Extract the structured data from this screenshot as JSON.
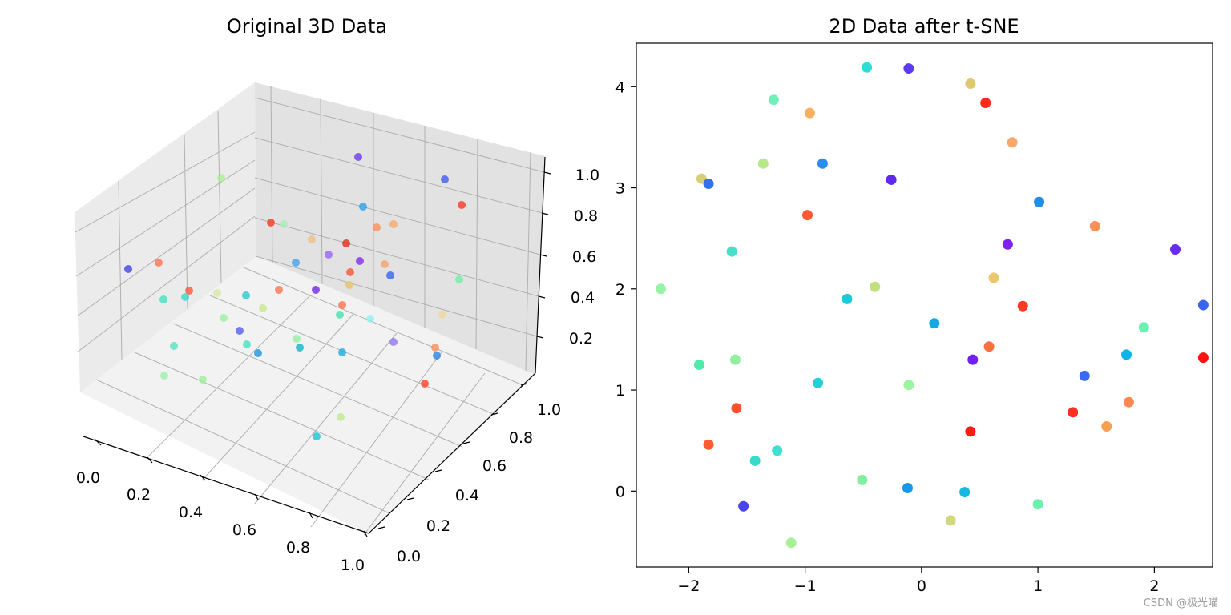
{
  "watermark": "CSDN @极光喵",
  "chart_data": [
    {
      "type": "scatter3d",
      "title": "Original 3D Data",
      "colormap": "rainbow",
      "x_ticks": [
        "0.0",
        "0.2",
        "0.4",
        "0.6",
        "0.8",
        "1.0"
      ],
      "y_ticks": [
        "0.0",
        "0.2",
        "0.4",
        "0.6",
        "0.8",
        "1.0"
      ],
      "z_ticks": [
        "0.2",
        "0.4",
        "0.6",
        "0.8",
        "1.0"
      ],
      "xlim": [
        0,
        1
      ],
      "ylim": [
        0,
        1
      ],
      "zlim": [
        0,
        1
      ],
      "grid": true,
      "points_color": [
        "#6a2cf0",
        "#3357f0",
        "#ff5a3c",
        "#4be0a0",
        "#ff3a1e",
        "#a8f08c",
        "#31c6e8",
        "#ff8a50",
        "#f0c080",
        "#8edcff"
      ],
      "points_note": "50 points, color-coded"
    },
    {
      "type": "scatter",
      "title": "2D Data after t-SNE",
      "colormap": "rainbow",
      "xlim": [
        -2.45,
        2.5
      ],
      "ylim": [
        -0.75,
        4.43
      ],
      "x_ticks": [
        -2,
        -1,
        0,
        1,
        2
      ],
      "x_tick_labels": [
        "−2",
        "−1",
        "0",
        "1",
        "2"
      ],
      "y_ticks": [
        0,
        1,
        2,
        3,
        4
      ],
      "y_tick_labels": [
        "0",
        "1",
        "2",
        "3",
        "4"
      ],
      "grid": false,
      "points": [
        {
          "x": -0.47,
          "y": 4.19,
          "c": "#2edcd8"
        },
        {
          "x": -0.11,
          "y": 4.18,
          "c": "#5b3af0"
        },
        {
          "x": 0.42,
          "y": 4.03,
          "c": "#e0c870"
        },
        {
          "x": 0.55,
          "y": 3.84,
          "c": "#ff2a18"
        },
        {
          "x": -1.27,
          "y": 3.87,
          "c": "#6ff0b8"
        },
        {
          "x": -0.96,
          "y": 3.74,
          "c": "#f8b060"
        },
        {
          "x": 0.78,
          "y": 3.45,
          "c": "#f8a868"
        },
        {
          "x": -1.36,
          "y": 3.24,
          "c": "#b8e888"
        },
        {
          "x": -0.85,
          "y": 3.24,
          "c": "#2a8ef0"
        },
        {
          "x": -1.89,
          "y": 3.09,
          "c": "#d8d078"
        },
        {
          "x": -1.83,
          "y": 3.04,
          "c": "#2f72ee"
        },
        {
          "x": -0.26,
          "y": 3.08,
          "c": "#6028ee"
        },
        {
          "x": 1.01,
          "y": 2.86,
          "c": "#1e8ee8"
        },
        {
          "x": -0.98,
          "y": 2.73,
          "c": "#ff5a30"
        },
        {
          "x": 1.49,
          "y": 2.62,
          "c": "#ff9058"
        },
        {
          "x": 0.74,
          "y": 2.44,
          "c": "#8020f0"
        },
        {
          "x": -1.63,
          "y": 2.37,
          "c": "#46e0c8"
        },
        {
          "x": 2.18,
          "y": 2.39,
          "c": "#6a2cf0"
        },
        {
          "x": 0.62,
          "y": 2.11,
          "c": "#e8c868"
        },
        {
          "x": -2.24,
          "y": 2.0,
          "c": "#98f2a8"
        },
        {
          "x": -0.4,
          "y": 2.02,
          "c": "#c0e080"
        },
        {
          "x": -0.64,
          "y": 1.9,
          "c": "#1ec8d8"
        },
        {
          "x": 0.87,
          "y": 1.83,
          "c": "#ff3a24"
        },
        {
          "x": 2.42,
          "y": 1.84,
          "c": "#3864f0"
        },
        {
          "x": 0.11,
          "y": 1.66,
          "c": "#10a8e8"
        },
        {
          "x": 1.91,
          "y": 1.62,
          "c": "#6cf0b0"
        },
        {
          "x": 0.58,
          "y": 1.43,
          "c": "#f87040"
        },
        {
          "x": 1.76,
          "y": 1.35,
          "c": "#0eb4e8"
        },
        {
          "x": 2.42,
          "y": 1.32,
          "c": "#ff1410"
        },
        {
          "x": -1.91,
          "y": 1.25,
          "c": "#52eaaa"
        },
        {
          "x": -1.6,
          "y": 1.3,
          "c": "#90f0a0"
        },
        {
          "x": 0.44,
          "y": 1.3,
          "c": "#7020f0"
        },
        {
          "x": -0.89,
          "y": 1.07,
          "c": "#22d0d8"
        },
        {
          "x": -0.11,
          "y": 1.05,
          "c": "#9cf4a0"
        },
        {
          "x": 1.4,
          "y": 1.14,
          "c": "#3a6aee"
        },
        {
          "x": 1.78,
          "y": 0.88,
          "c": "#f88a50"
        },
        {
          "x": 1.3,
          "y": 0.78,
          "c": "#ff3020"
        },
        {
          "x": -1.59,
          "y": 0.82,
          "c": "#ff5030"
        },
        {
          "x": 0.42,
          "y": 0.59,
          "c": "#ff1c14"
        },
        {
          "x": 1.59,
          "y": 0.64,
          "c": "#f8a050"
        },
        {
          "x": -1.83,
          "y": 0.46,
          "c": "#ff5a30"
        },
        {
          "x": -1.43,
          "y": 0.3,
          "c": "#36dcc8"
        },
        {
          "x": -1.24,
          "y": 0.4,
          "c": "#3ee0d0"
        },
        {
          "x": -0.51,
          "y": 0.11,
          "c": "#80f0a0"
        },
        {
          "x": -0.12,
          "y": 0.03,
          "c": "#1898e8"
        },
        {
          "x": 0.37,
          "y": -0.01,
          "c": "#16b8e0"
        },
        {
          "x": 1.0,
          "y": -0.13,
          "c": "#6cf0b0"
        },
        {
          "x": -1.53,
          "y": -0.15,
          "c": "#4a44ec"
        },
        {
          "x": 0.25,
          "y": -0.29,
          "c": "#d0d880"
        },
        {
          "x": -1.12,
          "y": -0.51,
          "c": "#a8f094"
        }
      ]
    }
  ]
}
